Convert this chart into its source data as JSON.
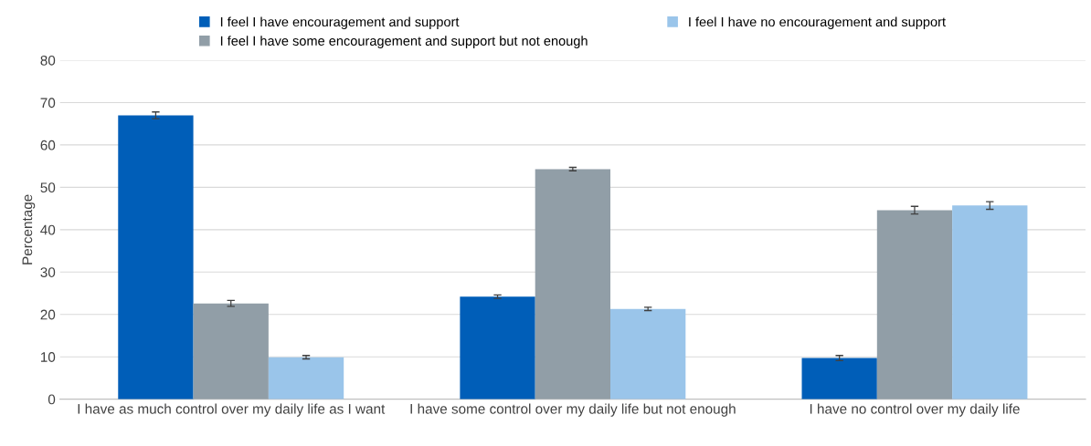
{
  "chart_data": {
    "type": "bar",
    "ylabel": "Percentage",
    "categories": [
      "I have as much control over my daily life as I want",
      "I have some control over my daily life but not enough",
      "I have no control over my daily life"
    ],
    "series": [
      {
        "name": "I feel I have encouragement and support",
        "color": "#005eb8",
        "values": [
          67.0,
          24.2,
          9.7
        ],
        "errors": [
          0.8,
          0.4,
          0.6
        ]
      },
      {
        "name": "I feel I have some encouragement and support but not enough",
        "color": "#919ea7",
        "values": [
          22.6,
          54.3,
          44.6
        ],
        "errors": [
          0.7,
          0.4,
          0.9
        ]
      },
      {
        "name": "I feel I have no encouragement and support",
        "color": "#9ac5ea",
        "values": [
          9.9,
          21.3,
          45.7
        ],
        "errors": [
          0.4,
          0.4,
          0.9
        ]
      }
    ],
    "ylim": [
      0,
      80
    ],
    "yticks": [
      0,
      10,
      20,
      30,
      40,
      50,
      60,
      70,
      80
    ],
    "grid": "y",
    "legend": "top"
  }
}
